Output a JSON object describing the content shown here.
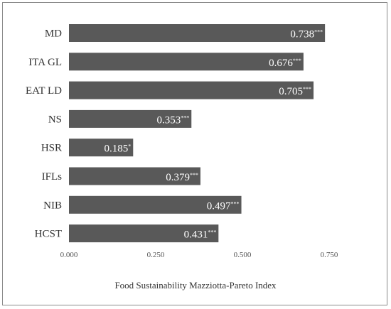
{
  "chart_data": {
    "type": "bar",
    "orientation": "horizontal",
    "categories": [
      "MD",
      "ITA GL",
      "EAT LD",
      "NS",
      "HSR",
      "IFLs",
      "NIB",
      "HCST"
    ],
    "values": [
      0.738,
      0.676,
      0.705,
      0.353,
      0.185,
      0.379,
      0.497,
      0.431
    ],
    "value_labels": [
      "0.738",
      "0.676",
      "0.705",
      "0.353",
      "0.185",
      "0.379",
      "0.497",
      "0.431"
    ],
    "significance": [
      "***",
      "***",
      "***",
      "***",
      "*",
      "***",
      "***",
      "***"
    ],
    "xlabel": "Food Sustainability Mazziotta-Pareto Index",
    "ylabel": "",
    "xlim": [
      0,
      0.75
    ],
    "x_ticks": [
      "0.000",
      "0.250",
      "0.500",
      "0.750"
    ],
    "x_tick_values": [
      0,
      0.25,
      0.5,
      0.75
    ],
    "grid": false,
    "bar_color": "#595959"
  }
}
